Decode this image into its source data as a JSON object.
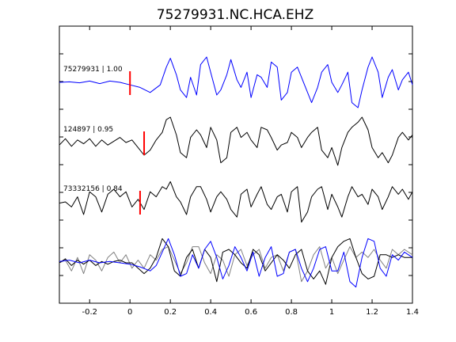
{
  "chart_data": {
    "type": "line",
    "title": "75279931.NC.HCA.EHZ",
    "xlabel": "",
    "ylabel": "",
    "xlim": [
      -0.35,
      1.4
    ],
    "xticks": [
      -0.2,
      0,
      0.2,
      0.4,
      0.6,
      0.8,
      1,
      1.2,
      1.4
    ],
    "xtick_labels": [
      "-0.2",
      "0",
      "0.2",
      "0.4",
      "0.6",
      "0.8",
      "1",
      "1.2",
      "1.4"
    ],
    "grid": false,
    "legend": "none",
    "pick_color": "#ff0000",
    "primary_color": "#0000ff",
    "secondary_color": "#000000",
    "overlay_color": "#808080",
    "traces": [
      {
        "label": "75279931 | 1.00",
        "color": "#0000ff",
        "pick_time": 0.0,
        "waveform": {
          "x": [
            -0.35,
            -0.3,
            -0.25,
            -0.2,
            -0.15,
            -0.1,
            -0.05,
            0.0,
            0.05,
            0.1,
            0.15,
            0.18,
            0.2,
            0.23,
            0.25,
            0.28,
            0.3,
            0.33,
            0.35,
            0.38,
            0.4,
            0.43,
            0.45,
            0.48,
            0.5,
            0.53,
            0.55,
            0.58,
            0.6,
            0.63,
            0.65,
            0.68,
            0.7,
            0.73,
            0.75,
            0.78,
            0.8,
            0.83,
            0.85,
            0.88,
            0.9,
            0.93,
            0.95,
            0.98,
            1.0,
            1.03,
            1.05,
            1.08,
            1.1,
            1.13,
            1.15,
            1.18,
            1.2,
            1.23,
            1.25,
            1.28,
            1.3,
            1.33,
            1.35,
            1.38,
            1.4
          ],
          "y": [
            0.0,
            0.02,
            -0.02,
            0.05,
            -0.05,
            0.05,
            0.0,
            -0.1,
            -0.2,
            -0.4,
            -0.1,
            0.6,
            0.95,
            0.3,
            -0.3,
            -0.6,
            0.2,
            -0.5,
            0.7,
            1.0,
            0.4,
            -0.5,
            -0.3,
            0.3,
            0.9,
            0.1,
            -0.2,
            0.4,
            -0.6,
            0.3,
            0.2,
            -0.2,
            0.8,
            0.6,
            -0.7,
            -0.4,
            0.4,
            0.6,
            0.2,
            -0.4,
            -0.8,
            -0.2,
            0.4,
            0.7,
            0.0,
            -0.4,
            -0.1,
            0.4,
            -0.8,
            -1.0,
            -0.3,
            0.6,
            1.0,
            0.4,
            -0.6,
            0.2,
            0.5,
            -0.3,
            0.1,
            0.4,
            -0.1
          ]
        }
      },
      {
        "label": "124897 | 0.95",
        "color": "#000000",
        "pick_time": 0.07,
        "waveform": {
          "x": [
            -0.35,
            -0.32,
            -0.29,
            -0.26,
            -0.23,
            -0.2,
            -0.17,
            -0.14,
            -0.11,
            -0.08,
            -0.05,
            -0.02,
            0.01,
            0.04,
            0.07,
            0.1,
            0.13,
            0.16,
            0.18,
            0.2,
            0.23,
            0.25,
            0.28,
            0.3,
            0.33,
            0.35,
            0.38,
            0.4,
            0.43,
            0.45,
            0.48,
            0.5,
            0.53,
            0.55,
            0.58,
            0.6,
            0.63,
            0.65,
            0.68,
            0.7,
            0.73,
            0.75,
            0.78,
            0.8,
            0.83,
            0.85,
            0.88,
            0.9,
            0.93,
            0.95,
            0.98,
            1.0,
            1.03,
            1.05,
            1.08,
            1.1,
            1.13,
            1.15,
            1.18,
            1.2,
            1.23,
            1.25,
            1.28,
            1.3,
            1.33,
            1.35,
            1.38,
            1.4
          ],
          "y": [
            -0.1,
            0.15,
            -0.15,
            0.1,
            -0.05,
            0.15,
            -0.15,
            0.1,
            -0.1,
            0.05,
            0.2,
            0.0,
            0.1,
            -0.2,
            -0.5,
            -0.3,
            0.1,
            0.4,
            0.9,
            1.0,
            0.3,
            -0.4,
            -0.6,
            0.2,
            0.5,
            0.3,
            -0.2,
            0.6,
            0.1,
            -0.8,
            -0.6,
            0.4,
            0.6,
            0.2,
            0.4,
            0.1,
            -0.2,
            0.6,
            0.5,
            0.2,
            -0.3,
            -0.1,
            0.0,
            0.4,
            0.2,
            -0.2,
            0.2,
            0.4,
            0.6,
            -0.3,
            -0.6,
            -0.2,
            -0.9,
            -0.2,
            0.4,
            0.6,
            0.8,
            1.0,
            0.5,
            -0.2,
            -0.6,
            -0.4,
            -0.8,
            -0.5,
            0.2,
            0.4,
            0.1,
            0.3
          ]
        }
      },
      {
        "label": "73332156 | 0.84",
        "color": "#000000",
        "pick_time": 0.05,
        "waveform": {
          "x": [
            -0.35,
            -0.32,
            -0.29,
            -0.26,
            -0.23,
            -0.2,
            -0.17,
            -0.14,
            -0.11,
            -0.08,
            -0.05,
            -0.02,
            0.01,
            0.04,
            0.07,
            0.1,
            0.13,
            0.16,
            0.18,
            0.2,
            0.23,
            0.25,
            0.28,
            0.3,
            0.33,
            0.35,
            0.38,
            0.4,
            0.43,
            0.45,
            0.48,
            0.5,
            0.53,
            0.55,
            0.58,
            0.6,
            0.63,
            0.65,
            0.68,
            0.7,
            0.73,
            0.75,
            0.78,
            0.8,
            0.83,
            0.85,
            0.88,
            0.9,
            0.93,
            0.95,
            0.98,
            1.0,
            1.03,
            1.05,
            1.08,
            1.1,
            1.13,
            1.15,
            1.18,
            1.2,
            1.23,
            1.25,
            1.28,
            1.3,
            1.33,
            1.35,
            1.38,
            1.4
          ],
          "y": [
            -0.05,
            0.0,
            -0.2,
            0.2,
            -0.5,
            0.4,
            0.2,
            -0.4,
            0.3,
            0.5,
            0.2,
            0.4,
            -0.2,
            0.1,
            -0.3,
            0.4,
            0.2,
            0.6,
            0.5,
            0.8,
            0.2,
            0.0,
            -0.5,
            0.2,
            0.6,
            0.6,
            0.1,
            -0.4,
            0.2,
            0.4,
            0.1,
            -0.3,
            -0.6,
            0.3,
            0.5,
            -0.2,
            0.3,
            0.6,
            -0.1,
            -0.3,
            0.2,
            0.3,
            -0.4,
            0.4,
            0.6,
            -0.8,
            -0.4,
            0.2,
            0.5,
            0.6,
            -0.3,
            0.3,
            -0.2,
            -0.6,
            0.2,
            0.6,
            0.2,
            0.3,
            -0.1,
            0.5,
            0.2,
            -0.3,
            0.2,
            0.6,
            0.3,
            0.5,
            0.1,
            0.4
          ]
        }
      }
    ],
    "overlay": {
      "description_colors": [
        "#0000ff",
        "#000000",
        "#808080"
      ],
      "series": [
        {
          "color": "#808080",
          "x": [
            -0.35,
            -0.32,
            -0.29,
            -0.26,
            -0.23,
            -0.2,
            -0.17,
            -0.14,
            -0.11,
            -0.08,
            -0.05,
            -0.02,
            0.01,
            0.04,
            0.07,
            0.1,
            0.13,
            0.16,
            0.19,
            0.22,
            0.25,
            0.28,
            0.31,
            0.34,
            0.37,
            0.4,
            0.43,
            0.46,
            0.49,
            0.52,
            0.55,
            0.58,
            0.61,
            0.64,
            0.67,
            0.7,
            0.73,
            0.76,
            0.79,
            0.82,
            0.85,
            0.88,
            0.91,
            0.94,
            0.97,
            1.0,
            1.03,
            1.06,
            1.09,
            1.12,
            1.15,
            1.18,
            1.21,
            1.24,
            1.27,
            1.3,
            1.33,
            1.36,
            1.4
          ],
          "y": [
            0.0,
            0.1,
            -0.3,
            0.2,
            -0.4,
            0.3,
            0.1,
            -0.3,
            0.2,
            0.4,
            0.0,
            0.3,
            -0.2,
            0.1,
            -0.2,
            0.3,
            0.1,
            0.5,
            0.6,
            0.1,
            -0.4,
            0.0,
            0.6,
            0.6,
            0.0,
            -0.4,
            0.3,
            0.1,
            -0.5,
            0.3,
            0.5,
            -0.1,
            0.3,
            0.5,
            -0.2,
            0.2,
            0.3,
            -0.3,
            0.4,
            0.5,
            -0.7,
            -0.3,
            0.3,
            0.6,
            -0.2,
            0.2,
            -0.4,
            0.1,
            0.6,
            0.2,
            0.4,
            0.2,
            0.5,
            0.1,
            -0.2,
            0.5,
            0.3,
            0.5,
            0.3
          ]
        },
        {
          "color": "#000000",
          "x": [
            -0.35,
            -0.32,
            -0.29,
            -0.26,
            -0.23,
            -0.2,
            -0.17,
            -0.14,
            -0.11,
            -0.08,
            -0.05,
            -0.02,
            0.01,
            0.04,
            0.07,
            0.1,
            0.13,
            0.16,
            0.19,
            0.22,
            0.25,
            0.28,
            0.31,
            0.34,
            0.37,
            0.4,
            0.43,
            0.46,
            0.49,
            0.52,
            0.55,
            0.58,
            0.61,
            0.64,
            0.67,
            0.7,
            0.73,
            0.76,
            0.79,
            0.82,
            0.85,
            0.88,
            0.91,
            0.94,
            0.97,
            1.0,
            1.03,
            1.06,
            1.09,
            1.12,
            1.15,
            1.18,
            1.21,
            1.24,
            1.27,
            1.3,
            1.33,
            1.36,
            1.4
          ],
          "y": [
            0.0,
            0.15,
            -0.1,
            0.1,
            -0.05,
            0.1,
            -0.1,
            0.05,
            -0.05,
            0.05,
            0.1,
            0.0,
            0.0,
            -0.2,
            -0.4,
            -0.2,
            0.2,
            0.9,
            0.6,
            -0.3,
            -0.5,
            0.2,
            0.5,
            -0.2,
            0.5,
            0.2,
            -0.7,
            0.4,
            0.5,
            0.3,
            0.0,
            -0.2,
            0.5,
            0.3,
            -0.3,
            0.0,
            0.3,
            0.1,
            -0.2,
            0.3,
            0.5,
            -0.3,
            -0.6,
            -0.3,
            -0.8,
            0.2,
            0.6,
            0.8,
            0.9,
            0.2,
            -0.4,
            -0.6,
            -0.5,
            0.3,
            0.3,
            0.2,
            0.3,
            0.2,
            0.2
          ]
        },
        {
          "color": "#0000ff",
          "x": [
            -0.35,
            -0.3,
            -0.25,
            -0.2,
            -0.15,
            -0.1,
            -0.05,
            0.0,
            0.05,
            0.1,
            0.13,
            0.16,
            0.19,
            0.22,
            0.25,
            0.28,
            0.31,
            0.34,
            0.37,
            0.4,
            0.43,
            0.46,
            0.49,
            0.52,
            0.55,
            0.58,
            0.61,
            0.64,
            0.67,
            0.7,
            0.73,
            0.76,
            0.79,
            0.82,
            0.85,
            0.88,
            0.91,
            0.94,
            0.97,
            1.0,
            1.03,
            1.06,
            1.09,
            1.12,
            1.15,
            1.18,
            1.21,
            1.24,
            1.27,
            1.3,
            1.33,
            1.36,
            1.4
          ],
          "y": [
            0.05,
            0.1,
            0.0,
            0.1,
            0.0,
            0.05,
            0.0,
            -0.05,
            -0.15,
            -0.3,
            -0.1,
            0.4,
            0.9,
            0.3,
            -0.5,
            -0.4,
            0.3,
            -0.2,
            0.5,
            0.8,
            0.2,
            -0.6,
            -0.1,
            0.6,
            0.2,
            -0.3,
            0.4,
            -0.5,
            0.2,
            0.6,
            -0.5,
            -0.4,
            0.4,
            0.5,
            -0.2,
            -0.7,
            -0.2,
            0.5,
            0.6,
            -0.3,
            -0.3,
            0.4,
            -0.7,
            -0.9,
            0.2,
            0.9,
            0.8,
            -0.2,
            -0.5,
            0.3,
            0.1,
            0.4,
            0.2
          ]
        }
      ]
    }
  }
}
